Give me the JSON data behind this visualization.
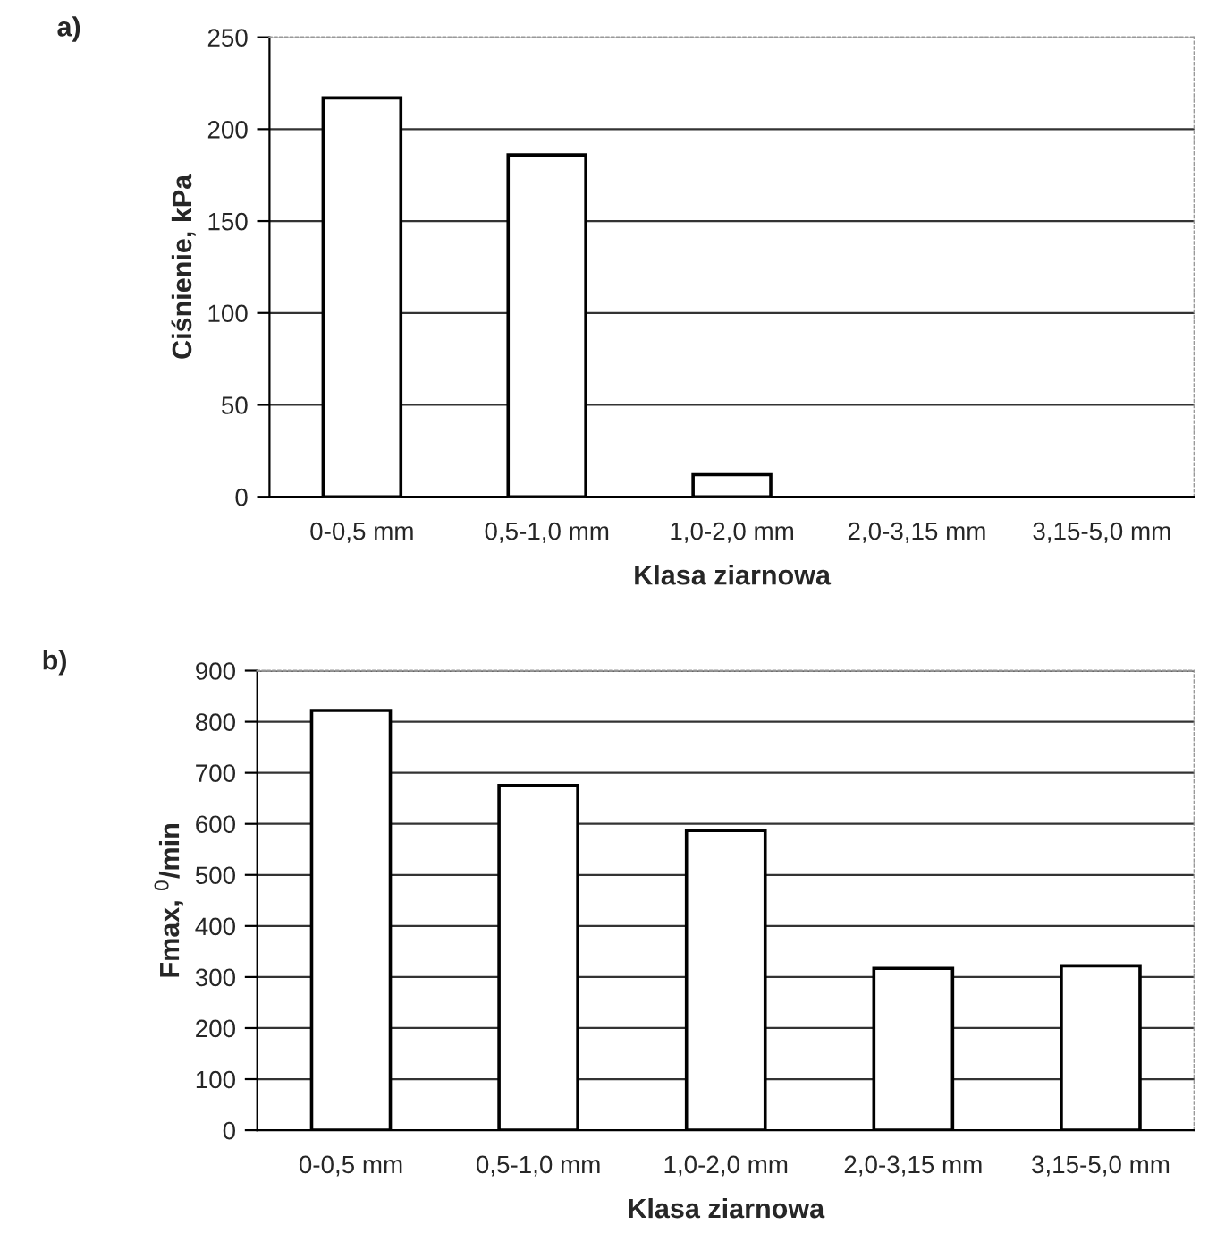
{
  "chart_data": [
    {
      "type": "bar",
      "title": "a)",
      "xlabel": "Klasa ziarnowa",
      "ylabel": "Ciśnienie, kPa",
      "categories": [
        "0-0,5 mm",
        "0,5-1,0 mm",
        "1,0-2,0 mm",
        "2,0-3,15 mm",
        "3,15-5,0 mm"
      ],
      "values": [
        217,
        186,
        12,
        0,
        0
      ],
      "color": "#ffffff",
      "ylim": [
        0,
        250
      ],
      "yticks": [
        0,
        50,
        100,
        150,
        200,
        250
      ],
      "grid": "y"
    },
    {
      "type": "bar",
      "title": "b)",
      "xlabel": "Klasa ziarnowa",
      "ylabel": "Fmax, $^{0}$/min",
      "categories": [
        "0-0,5 mm",
        "0,5-1,0 mm",
        "1,0-2,0 mm",
        "2,0-3,15 mm",
        "3,15-5,0 mm"
      ],
      "values": [
        822,
        675,
        587,
        317,
        322
      ],
      "color": "#ffffff",
      "ylim": [
        0,
        900
      ],
      "yticks": [
        0,
        100,
        200,
        300,
        400,
        500,
        600,
        700,
        800,
        900
      ],
      "grid": "y"
    }
  ]
}
